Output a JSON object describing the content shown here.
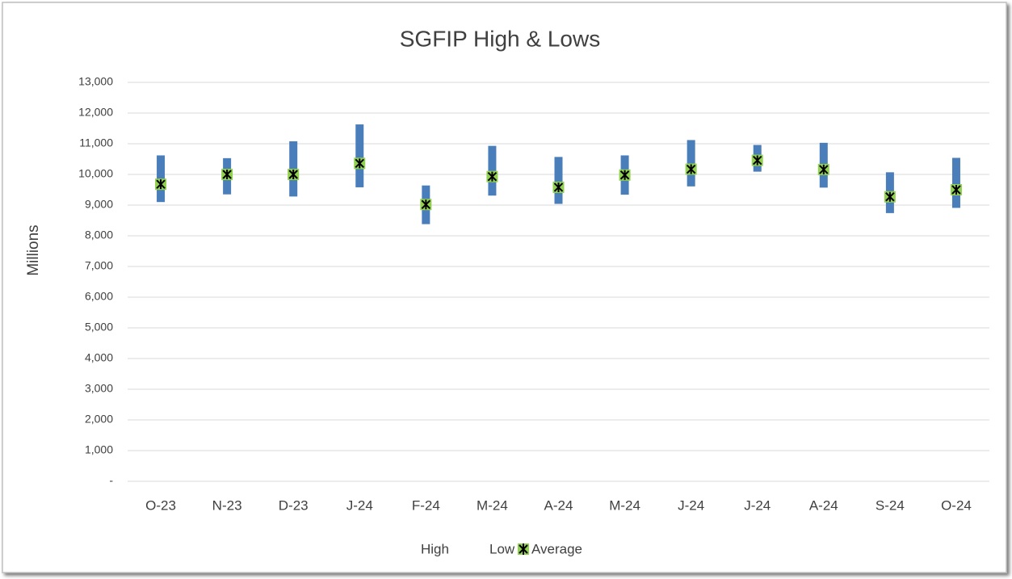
{
  "chart_data": {
    "type": "highlow",
    "title": "SGFIP High & Lows",
    "y_label": "Millions",
    "categories": [
      "O-23",
      "N-23",
      "D-23",
      "J-24",
      "F-24",
      "M-24",
      "A-24",
      "M-24",
      "J-24",
      "J-24",
      "A-24",
      "S-24",
      "O-24"
    ],
    "series": [
      {
        "name": "High",
        "color": "#4a7ebb",
        "values": [
          10620,
          10530,
          11080,
          11630,
          9640,
          10930,
          10570,
          10620,
          11120,
          10960,
          11030,
          10070,
          10540
        ]
      },
      {
        "name": "Low",
        "color": "#4a7ebb",
        "values": [
          9100,
          9350,
          9280,
          9580,
          8380,
          9310,
          9040,
          9340,
          9610,
          10090,
          9570,
          8740,
          8910
        ]
      },
      {
        "name": "Average",
        "color": "#92d050",
        "values": [
          9680,
          10000,
          10000,
          10360,
          9020,
          9930,
          9580,
          9980,
          10170,
          10460,
          10160,
          9270,
          9500
        ]
      }
    ],
    "ylim": [
      0,
      13000
    ],
    "yticks": [
      {
        "value": 0,
        "label": "-"
      },
      {
        "value": 1000,
        "label": "1,000"
      },
      {
        "value": 2000,
        "label": "2,000"
      },
      {
        "value": 3000,
        "label": "3,000"
      },
      {
        "value": 4000,
        "label": "4,000"
      },
      {
        "value": 5000,
        "label": "5,000"
      },
      {
        "value": 6000,
        "label": "6,000"
      },
      {
        "value": 7000,
        "label": "7,000"
      },
      {
        "value": 8000,
        "label": "8,000"
      },
      {
        "value": 9000,
        "label": "9,000"
      },
      {
        "value": 10000,
        "label": "10,000"
      },
      {
        "value": 11000,
        "label": "11,000"
      },
      {
        "value": 12000,
        "label": "12,000"
      },
      {
        "value": 13000,
        "label": "13,000"
      }
    ],
    "grid": true,
    "legend": "bottom"
  }
}
